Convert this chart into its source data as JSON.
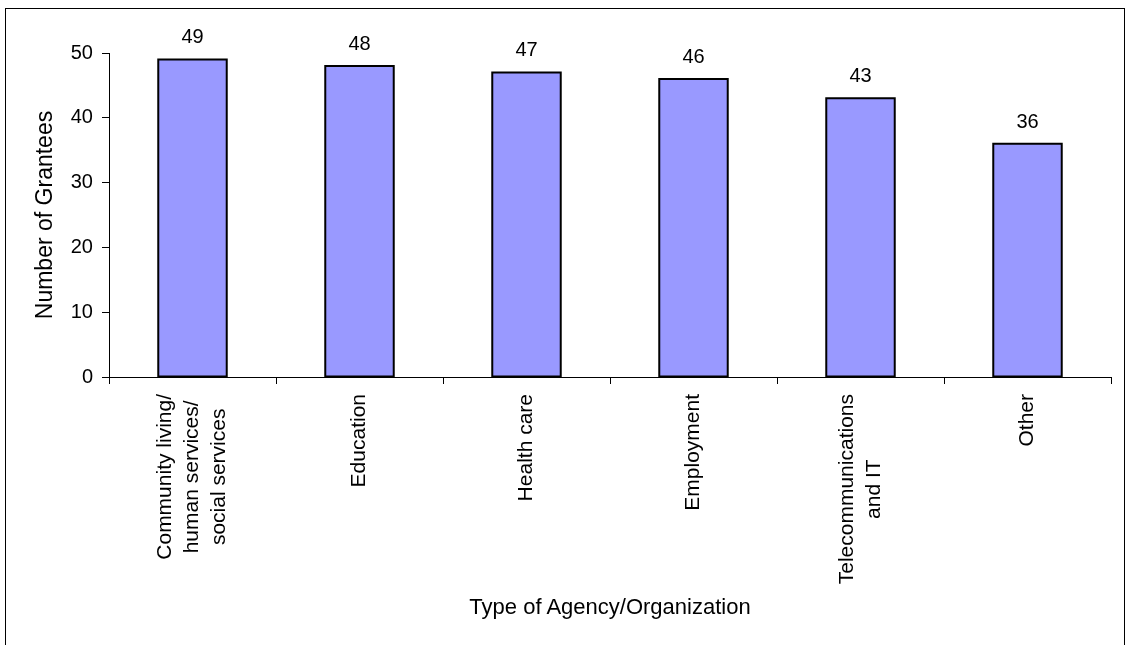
{
  "chart_data": {
    "type": "bar",
    "xlabel": "Type of Agency/Organization",
    "ylabel": "Number of Grantees",
    "categories": [
      "Community living/ human services/ social services",
      "Education",
      "Health care",
      "Employment",
      "Telecommunications and IT",
      "Other"
    ],
    "values": [
      49,
      48,
      47,
      46,
      43,
      36
    ],
    "color": "#9999ff",
    "ylim": [
      0,
      50
    ],
    "yticks": [
      0,
      10,
      20,
      30,
      40,
      50
    ],
    "grid": false,
    "legend": false,
    "data_labels": true
  }
}
